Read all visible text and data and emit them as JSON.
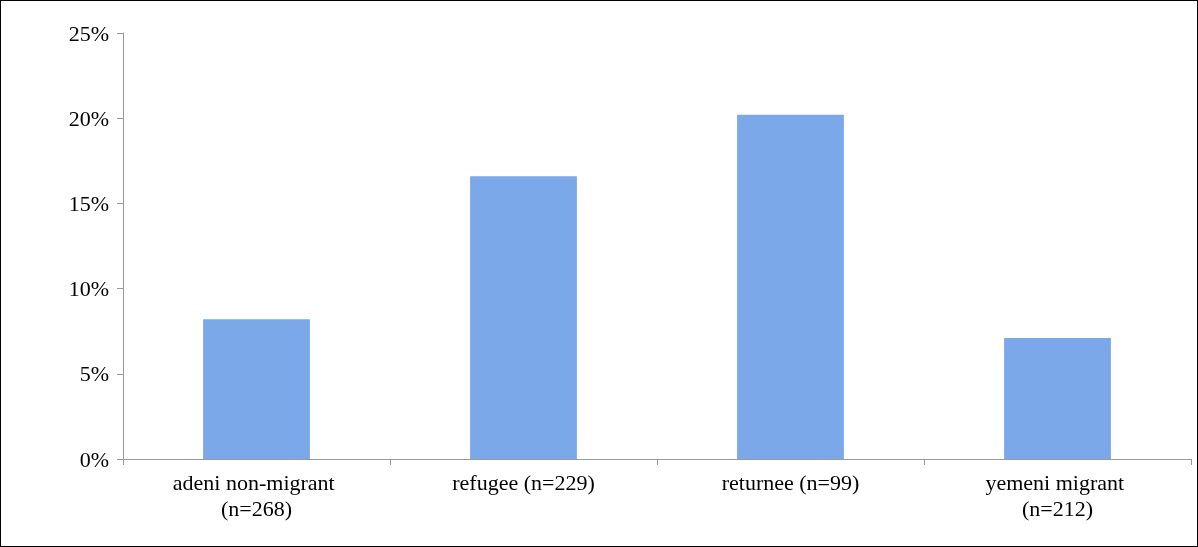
{
  "chart_data": {
    "type": "bar",
    "categories": [
      "adeni non-migrant (n=268)",
      "refugee (n=229)",
      "returnee (n=99)",
      "yemeni migrant (n=212)"
    ],
    "values": [
      8.2,
      16.6,
      20.2,
      7.1
    ],
    "color": "#7ba8e8",
    "ylim": [
      0,
      25
    ],
    "yticks": [
      {
        "value": 0,
        "label": "0%"
      },
      {
        "value": 5,
        "label": "5%"
      },
      {
        "value": 10,
        "label": "10%"
      },
      {
        "value": 15,
        "label": "15%"
      },
      {
        "value": 20,
        "label": "20%"
      },
      {
        "value": 25,
        "label": "25%"
      }
    ],
    "grid": false
  }
}
